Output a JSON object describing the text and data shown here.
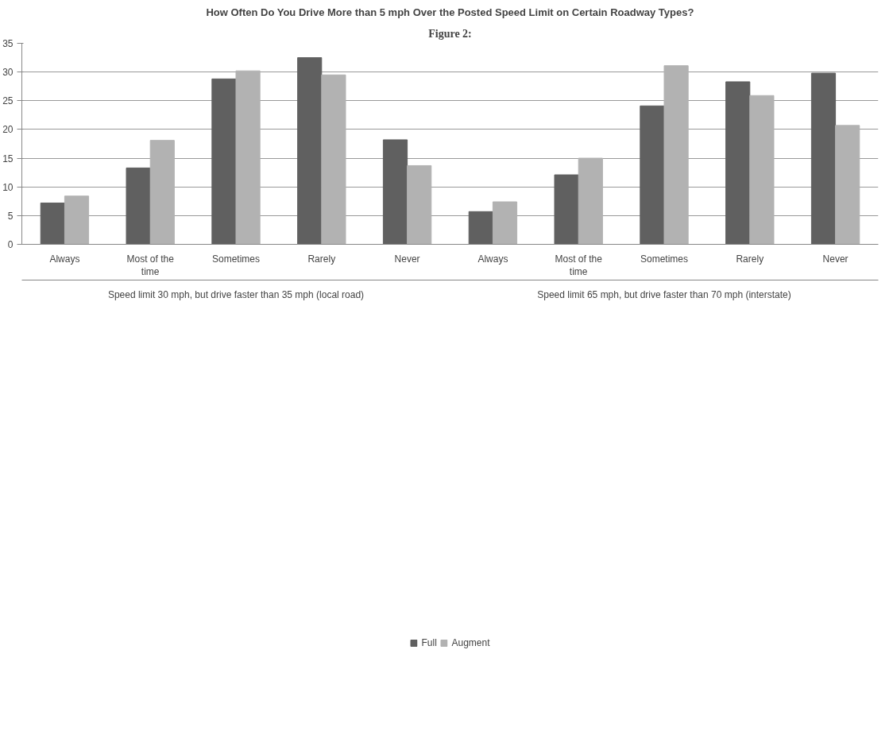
{
  "chart_data": {
    "type": "bar",
    "title": "How Often Do You Drive More than 5 mph Over the Posted Speed Limit on Certain Roadway Types?",
    "categories": [
      "Always",
      "Most of the time",
      "Sometimes",
      "Rarely",
      "Never",
      "Always",
      "Most of the time",
      "Sometimes",
      "Rarely",
      "Never"
    ],
    "series": [
      {
        "name": "Full",
        "color": "#606060",
        "values": [
          7.2,
          13.3,
          28.8,
          32.5,
          18.2,
          5.7,
          12.1,
          24.1,
          28.3,
          29.8
        ]
      },
      {
        "name": "Augment",
        "color": "#b2b2b2",
        "values": [
          8.4,
          18.1,
          30.2,
          29.5,
          13.7,
          7.4,
          15.0,
          31.1,
          25.9,
          20.7
        ]
      }
    ],
    "annotations": [
      "Figure 2:",
      "Speed limit 30 mph, but drive faster than 35 mph (local road)",
      "Speed limit 65 mph, but drive faster than 70 mph (interstate)"
    ],
    "ylim": [
      0,
      35
    ],
    "yticks": [
      0,
      5,
      10,
      15,
      20,
      25,
      30,
      35
    ],
    "grid": "y",
    "legend": "bottom"
  }
}
